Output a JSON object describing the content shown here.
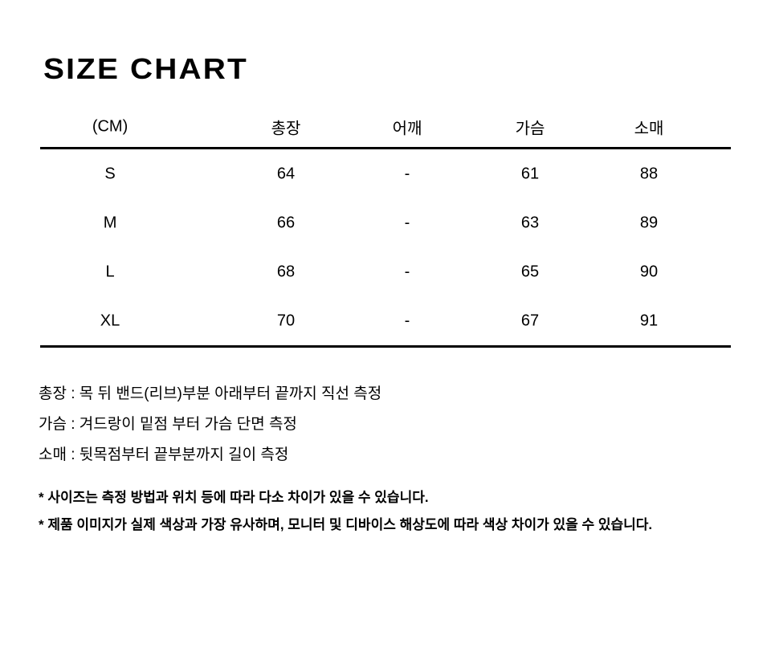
{
  "page": {
    "title": "SIZE CHART"
  },
  "size_table": {
    "unit_label": "(CM)",
    "columns": [
      "총장",
      "어깨",
      "가슴",
      "소매"
    ],
    "rows": [
      {
        "size": "S",
        "values": [
          "64",
          "-",
          "61",
          "88"
        ]
      },
      {
        "size": "M",
        "values": [
          "66",
          "-",
          "63",
          "89"
        ]
      },
      {
        "size": "L",
        "values": [
          "68",
          "-",
          "65",
          "90"
        ]
      },
      {
        "size": "XL",
        "values": [
          "70",
          "-",
          "67",
          "91"
        ]
      }
    ]
  },
  "measure_notes": [
    "총장 : 목 뒤 밴드(리브)부분 아래부터 끝까지 직선 측정",
    "가슴 : 겨드랑이 밑점 부터 가슴 단면 측정",
    "소매 : 뒷목점부터 끝부분까지 길이 측정"
  ],
  "disclaimers": [
    "* 사이즈는 측정 방법과 위치 등에 따라 다소 차이가 있을 수 있습니다.",
    "* 제품 이미지가 실제 색상과 가장 유사하며, 모니터 및 디바이스 해상도에 따라 색상 차이가 있을 수 있습니다."
  ]
}
